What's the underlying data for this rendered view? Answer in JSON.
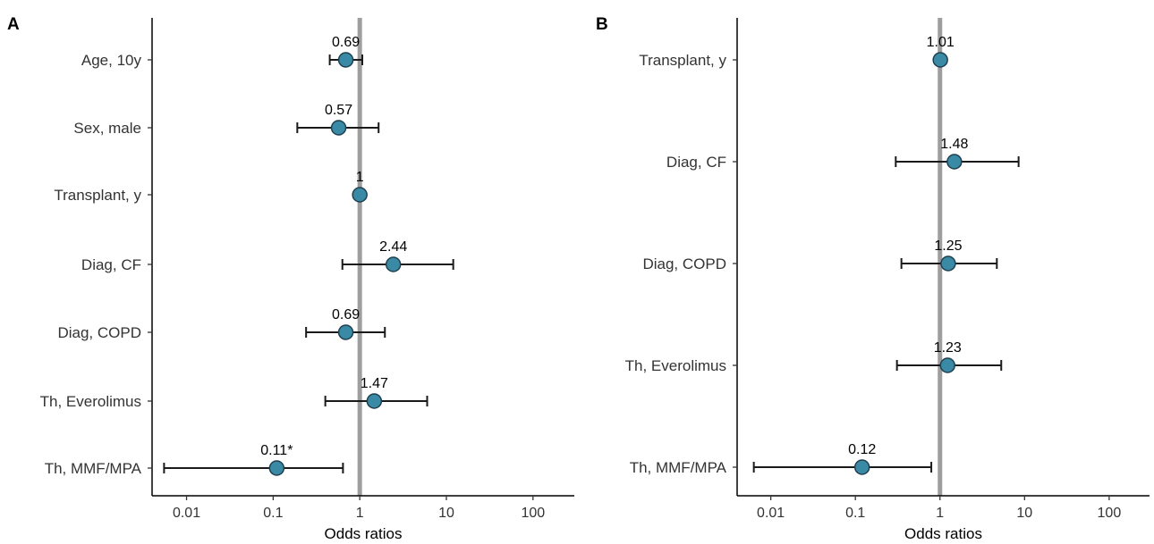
{
  "chart_data": [
    {
      "type": "forest",
      "panel_label": "A",
      "xlabel": "Odds ratios",
      "x_scale": "log10",
      "xlim": [
        0.004,
        300
      ],
      "xticks": [
        0.01,
        0.1,
        1,
        10,
        100
      ],
      "xtick_labels": [
        "0.01",
        "0.1",
        "1",
        "10",
        "100"
      ],
      "reference_line": 1,
      "point_color": "#3a8aa6",
      "reference_color": "#9e9e9e",
      "rows": [
        {
          "label": "Age, 10y",
          "or": 0.69,
          "ci_low": 0.45,
          "ci_high": 1.07,
          "value_label": "0.69"
        },
        {
          "label": "Sex, male",
          "or": 0.57,
          "ci_low": 0.19,
          "ci_high": 1.65,
          "value_label": "0.57"
        },
        {
          "label": "Transplant, y",
          "or": 1.0,
          "ci_low": 0.98,
          "ci_high": 1.02,
          "value_label": "1"
        },
        {
          "label": "Diag, CF",
          "or": 2.44,
          "ci_low": 0.63,
          "ci_high": 12.0,
          "value_label": "2.44"
        },
        {
          "label": "Diag, COPD",
          "or": 0.69,
          "ci_low": 0.24,
          "ci_high": 1.95,
          "value_label": "0.69"
        },
        {
          "label": "Th, Everolimus",
          "or": 1.47,
          "ci_low": 0.4,
          "ci_high": 6.0,
          "value_label": "1.47"
        },
        {
          "label": "Th, MMF/MPA",
          "or": 0.11,
          "ci_low": 0.0055,
          "ci_high": 0.64,
          "value_label": "0.11*"
        }
      ]
    },
    {
      "type": "forest",
      "panel_label": "B",
      "xlabel": "Odds ratios",
      "x_scale": "log10",
      "xlim": [
        0.004,
        300
      ],
      "xticks": [
        0.01,
        0.1,
        1,
        10,
        100
      ],
      "xtick_labels": [
        "0.01",
        "0.1",
        "1",
        "10",
        "100"
      ],
      "reference_line": 1,
      "point_color": "#3a8aa6",
      "reference_color": "#9e9e9e",
      "rows": [
        {
          "label": "Transplant, y",
          "or": 1.01,
          "ci_low": 0.99,
          "ci_high": 1.03,
          "value_label": "1.01"
        },
        {
          "label": "Diag, CF",
          "or": 1.48,
          "ci_low": 0.3,
          "ci_high": 8.5,
          "value_label": "1.48"
        },
        {
          "label": "Diag, COPD",
          "or": 1.25,
          "ci_low": 0.35,
          "ci_high": 4.7,
          "value_label": "1.25"
        },
        {
          "label": "Th, Everolimus",
          "or": 1.23,
          "ci_low": 0.31,
          "ci_high": 5.3,
          "value_label": "1.23"
        },
        {
          "label": "Th, MMF/MPA",
          "or": 0.12,
          "ci_low": 0.0063,
          "ci_high": 0.79,
          "value_label": "0.12"
        }
      ]
    }
  ]
}
